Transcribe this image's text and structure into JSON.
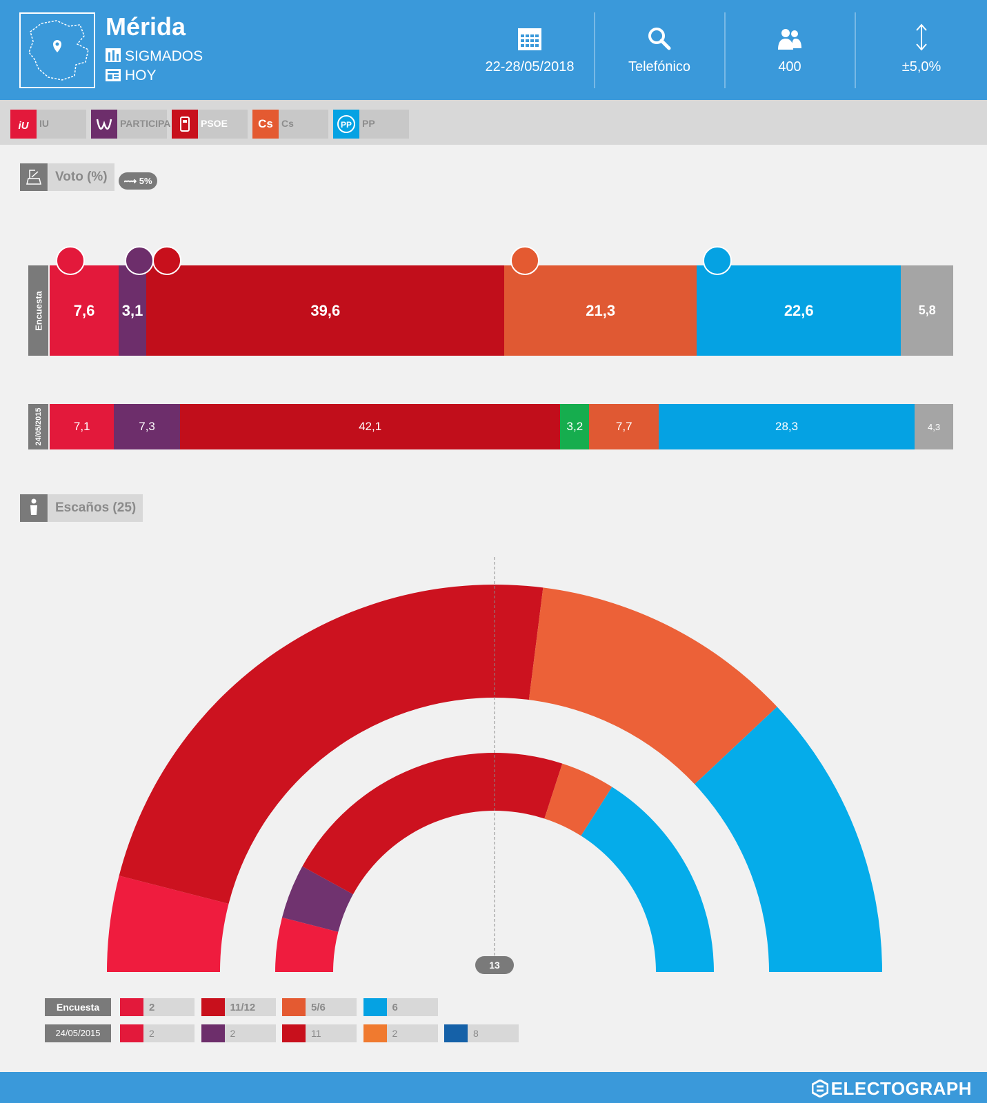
{
  "header": {
    "title": "Mérida",
    "pollster": "SIGMADOS",
    "media": "HOY",
    "date": "22-28/05/2018",
    "method": "Telefónico",
    "sample": "400",
    "error": "±5,0%"
  },
  "legend": [
    {
      "label": "IU",
      "color": "#e3193b",
      "icon": "iu-logo"
    },
    {
      "label": "PARTICIPA",
      "color": "#6d2e6b",
      "icon": "participa-logo"
    },
    {
      "label": "PSOE",
      "color": "#c8101c",
      "icon": "psoe-logo"
    },
    {
      "label": "Cs",
      "color": "#e45a31",
      "icon": "cs-logo"
    },
    {
      "label": "PP",
      "color": "#05a2e3",
      "icon": "pp-logo"
    }
  ],
  "vote_section": {
    "label": "Voto (%)",
    "threshold": "5%"
  },
  "seat_section": {
    "label": "Escaños (25)",
    "majority": "13"
  },
  "chart_data": [
    {
      "type": "bar",
      "name": "vote",
      "series": [
        {
          "name": "Encuesta",
          "values": [
            {
              "party": "IU",
              "value": 7.6,
              "label": "7,6",
              "color": "#e3193b"
            },
            {
              "party": "PARTICIPA",
              "value": 3.1,
              "label": "3,1",
              "color": "#6d2e6b"
            },
            {
              "party": "PSOE",
              "value": 39.6,
              "label": "39,6",
              "color": "#c10e1b"
            },
            {
              "party": "Cs",
              "value": 21.3,
              "label": "21,3",
              "color": "#e05933"
            },
            {
              "party": "PP",
              "value": 22.6,
              "label": "22,6",
              "color": "#05a2e3"
            },
            {
              "party": "Otros",
              "value": 5.8,
              "label": "5,8",
              "color": "#a5a5a5"
            }
          ]
        },
        {
          "name": "24/05/2015",
          "values": [
            {
              "party": "IU",
              "value": 7.1,
              "label": "7,1",
              "color": "#e3193b"
            },
            {
              "party": "PARTICIPA",
              "value": 7.3,
              "label": "7,3",
              "color": "#6d2e6b"
            },
            {
              "party": "PSOE",
              "value": 42.1,
              "label": "42,1",
              "color": "#c10e1b"
            },
            {
              "party": "Otro",
              "value": 3.2,
              "label": "3,2",
              "color": "#16ad4e"
            },
            {
              "party": "Cs",
              "value": 7.7,
              "label": "7,7",
              "color": "#e05933"
            },
            {
              "party": "PP",
              "value": 28.3,
              "label": "28,3",
              "color": "#05a2e3"
            },
            {
              "party": "Otros",
              "value": 4.3,
              "label": "4,3",
              "color": "#a5a5a5"
            }
          ]
        }
      ]
    },
    {
      "type": "pie",
      "name": "seats",
      "total": 25,
      "rings": [
        {
          "name": "Encuesta",
          "values": [
            {
              "party": "IU",
              "seats": 2,
              "color": "#ef1c3e"
            },
            {
              "party": "PSOE",
              "seats": 11.5,
              "color": "#cc121f"
            },
            {
              "party": "Cs",
              "seats": 5.5,
              "color": "#ec6138"
            },
            {
              "party": "PP",
              "seats": 6,
              "color": "#05acea"
            }
          ]
        },
        {
          "name": "24/05/2015",
          "values": [
            {
              "party": "IU",
              "seats": 2,
              "color": "#ef1c3e"
            },
            {
              "party": "PARTICIPA",
              "seats": 2,
              "color": "#70336f"
            },
            {
              "party": "PSOE",
              "seats": 11,
              "color": "#cc121f"
            },
            {
              "party": "Cs",
              "seats": 2,
              "color": "#ec6138"
            },
            {
              "party": "PP",
              "seats": 8,
              "color": "#05acea"
            }
          ]
        }
      ]
    }
  ],
  "seat_table": {
    "rows": [
      {
        "tag": "Encuesta",
        "items": [
          {
            "icon": "iu-logo",
            "value": "2",
            "color": "#e3193b"
          },
          {
            "icon": "psoe-logo",
            "value": "11/12",
            "color": "#c8101c"
          },
          {
            "icon": "cs-logo",
            "value": "5/6",
            "color": "#e45a31"
          },
          {
            "icon": "pp-logo",
            "value": "6",
            "color": "#05a2e3"
          }
        ]
      },
      {
        "tag": "24/05/2015",
        "items": [
          {
            "icon": "iu-logo",
            "value": "2",
            "color": "#e3193b"
          },
          {
            "icon": "participa-logo",
            "value": "2",
            "color": "#6d2e6b"
          },
          {
            "icon": "psoe-logo",
            "value": "11",
            "color": "#c8101c"
          },
          {
            "icon": "cs-logo",
            "value": "2",
            "color": "#f07a2f"
          },
          {
            "icon": "pp-logo",
            "value": "8",
            "color": "#1561a8"
          }
        ]
      }
    ]
  },
  "footer": {
    "brand": "ELECTOGRAPH"
  }
}
